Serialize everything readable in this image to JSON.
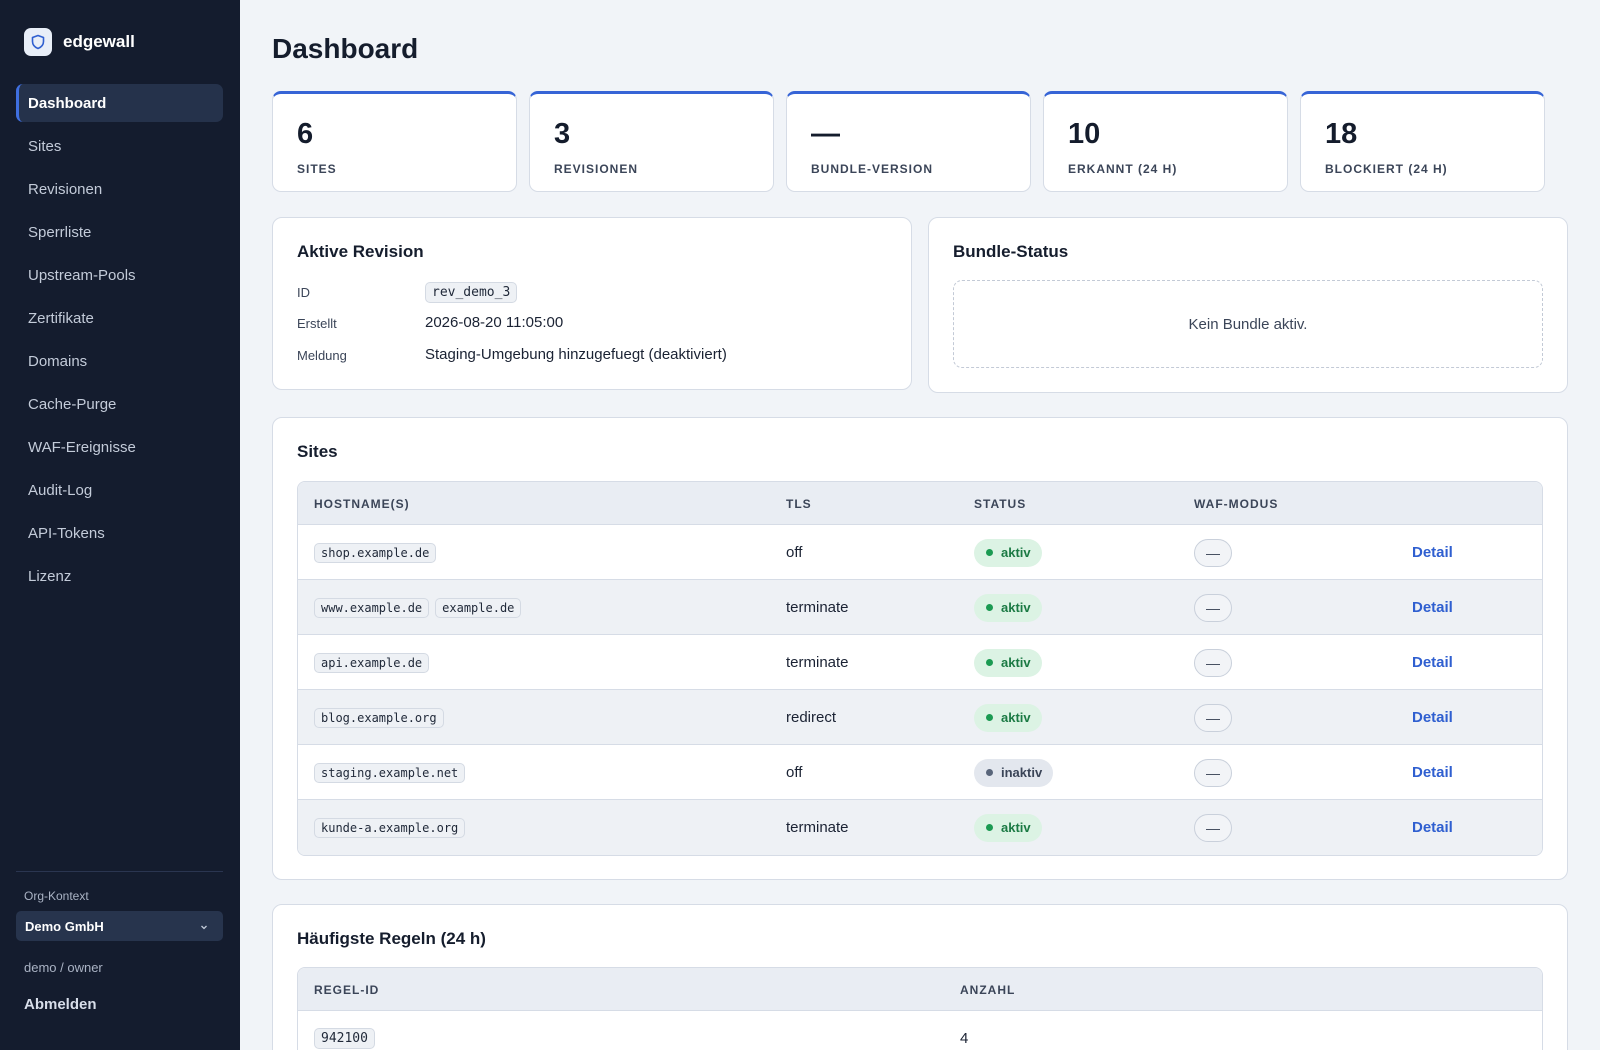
{
  "app": {
    "name": "edgewall",
    "logo_icon": "shield-icon"
  },
  "sidebar": {
    "items": [
      {
        "label": "Dashboard",
        "active": true
      },
      {
        "label": "Sites"
      },
      {
        "label": "Revisionen"
      },
      {
        "label": "Sperrliste"
      },
      {
        "label": "Upstream-Pools"
      },
      {
        "label": "Zertifikate"
      },
      {
        "label": "Domains"
      },
      {
        "label": "Cache-Purge"
      },
      {
        "label": "WAF-Ereignisse"
      },
      {
        "label": "Audit-Log"
      },
      {
        "label": "API-Tokens"
      },
      {
        "label": "Lizenz"
      }
    ],
    "org_label": "Org-Kontext",
    "org_value": "Demo GmbH",
    "user": "demo / owner",
    "logout": "Abmelden"
  },
  "page": {
    "title": "Dashboard"
  },
  "stats": [
    {
      "value": "6",
      "label": "SITES"
    },
    {
      "value": "3",
      "label": "REVISIONEN"
    },
    {
      "value": "—",
      "label": "BUNDLE-VERSION"
    },
    {
      "value": "10",
      "label": "ERKANNT (24 H)"
    },
    {
      "value": "18",
      "label": "BLOCKIERT (24 H)"
    }
  ],
  "revision": {
    "title": "Aktive Revision",
    "id_label": "ID",
    "id": "rev_demo_3",
    "created_label": "Erstellt",
    "created": "2026-08-20 11:05:00",
    "message_label": "Meldung",
    "message": "Staging-Umgebung hinzugefuegt (deaktiviert)"
  },
  "bundle": {
    "title": "Bundle-Status",
    "empty": "Kein Bundle aktiv."
  },
  "sites": {
    "title": "Sites",
    "columns": {
      "host": "HOSTNAME(S)",
      "tls": "TLS",
      "status": "STATUS",
      "waf": "WAF-MODUS"
    },
    "detail_label": "Detail",
    "rows": [
      {
        "hosts": [
          "shop.example.de"
        ],
        "tls": "off",
        "status": "aktiv",
        "active": true,
        "waf": "—"
      },
      {
        "hosts": [
          "www.example.de",
          "example.de"
        ],
        "tls": "terminate",
        "status": "aktiv",
        "active": true,
        "waf": "—"
      },
      {
        "hosts": [
          "api.example.de"
        ],
        "tls": "terminate",
        "status": "aktiv",
        "active": true,
        "waf": "—"
      },
      {
        "hosts": [
          "blog.example.org"
        ],
        "tls": "redirect",
        "status": "aktiv",
        "active": true,
        "waf": "—"
      },
      {
        "hosts": [
          "staging.example.net"
        ],
        "tls": "off",
        "status": "inaktiv",
        "active": false,
        "waf": "—"
      },
      {
        "hosts": [
          "kunde-a.example.org"
        ],
        "tls": "terminate",
        "status": "aktiv",
        "active": true,
        "waf": "—"
      }
    ]
  },
  "rules": {
    "title": "Häufigste Regeln (24 h)",
    "columns": {
      "id": "REGEL-ID",
      "count": "ANZAHL"
    },
    "rows": [
      {
        "id": "942100",
        "count": "4"
      }
    ]
  }
}
